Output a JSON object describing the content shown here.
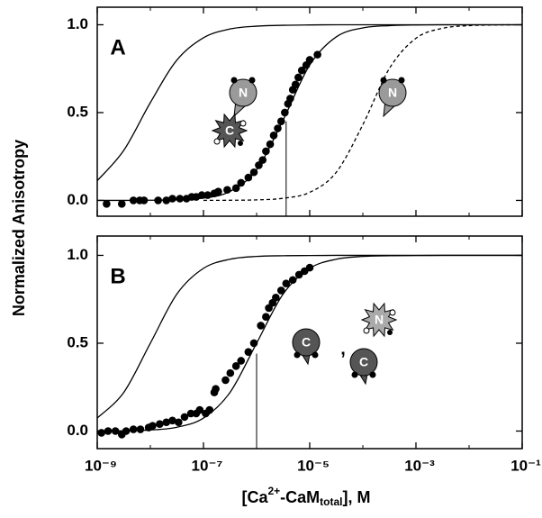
{
  "chart_data": [
    {
      "type": "line",
      "panel": "A",
      "xscale": "log",
      "xlim": [
        1e-09,
        0.1
      ],
      "xticks": [
        1e-09,
        1e-07,
        1e-05,
        0.001,
        0.1
      ],
      "xminorticks": [
        1e-08,
        1e-06,
        0.0001,
        0.01
      ],
      "ylim": [
        -0.09,
        1.1
      ],
      "yticks": [
        {
          "value": 0,
          "label": "0.0"
        },
        0.5,
        {
          "value": 1,
          "label": "1.0"
        }
      ],
      "ylabel": "Normalized Anisotropy",
      "annotations": [
        "N",
        "C",
        "N"
      ],
      "vline": {
        "x": 3.6e-06,
        "y": 0.45
      },
      "x": [
        1e-09,
        3.16e-09,
        1e-08,
        3.16e-08,
        1e-07,
        3.16e-07,
        1e-06,
        3.16e-06,
        1e-05,
        3.16e-05,
        0.0001,
        0.000316,
        0.001,
        0.00316,
        0.01,
        0.0316,
        0.1
      ],
      "series": [
        {
          "style": "solid",
          "color": "#000000",
          "values": [
            0.112,
            0.285,
            0.557,
            0.799,
            0.926,
            0.976,
            0.992,
            0.997,
            0.999,
            1,
            1,
            1,
            1,
            1,
            1,
            1,
            1
          ]
        },
        {
          "style": "solid",
          "color": "#000000",
          "values": [
            0,
            0.0002,
            0.0009,
            0.0034,
            0.013,
            0.051,
            0.175,
            0.458,
            0.771,
            0.931,
            0.982,
            0.995,
            0.999,
            1,
            1,
            1,
            1
          ]
        },
        {
          "style": "dashed",
          "color": "#000000",
          "values": [
            null,
            null,
            null,
            null,
            0.0002,
            0.0008,
            0.003,
            0.012,
            0.046,
            0.16,
            0.431,
            0.751,
            0.923,
            0.98,
            0.995,
            0.999,
            1
          ]
        },
        {
          "style": "markers",
          "color": "#000000",
          "x": [
            1.5e-09,
            2.9e-09,
            4.8e-09,
            6.3e-09,
            7.6e-09,
            1.4e-08,
            2e-08,
            2.6e-08,
            3.6e-08,
            4.8e-08,
            6e-08,
            7.3e-08,
            9.3e-08,
            1.2e-07,
            1.6e-07,
            1.9e-07,
            2.8e-07,
            4.1e-07,
            5.1e-07,
            7e-07,
            8.9e-07,
            1.1e-06,
            1.3e-06,
            1.5e-06,
            1.8e-06,
            2.1e-06,
            2.5e-06,
            2.9e-06,
            3.4e-06,
            3.9e-06,
            4.3e-06,
            4.8e-06,
            5.4e-06,
            6.1e-06,
            7.1e-06,
            8.6e-06,
            1e-05,
            1.4e-05
          ],
          "values": [
            -0.02,
            -0.02,
            0.0,
            0.0,
            0.0,
            0.0,
            0.0,
            0.01,
            0.01,
            0.01,
            0.02,
            0.02,
            0.03,
            0.03,
            0.04,
            0.05,
            0.06,
            0.07,
            0.1,
            0.13,
            0.16,
            0.2,
            0.23,
            0.28,
            0.32,
            0.37,
            0.41,
            0.45,
            0.5,
            0.55,
            0.58,
            0.63,
            0.66,
            0.7,
            0.74,
            0.77,
            0.8,
            0.83
          ]
        }
      ]
    },
    {
      "type": "line",
      "panel": "B",
      "xscale": "log",
      "xlim": [
        1e-09,
        0.1
      ],
      "xticks": [
        {
          "value": 1e-09,
          "label": "10⁻⁹"
        },
        {
          "value": 1e-07,
          "label": "10⁻⁷"
        },
        {
          "value": 1e-05,
          "label": "10⁻⁵"
        },
        {
          "value": 0.001,
          "label": "10⁻³"
        },
        {
          "value": 0.1,
          "label": "10⁻¹"
        }
      ],
      "xminorticks": [
        1e-08,
        1e-06,
        0.0001,
        0.01
      ],
      "ylim": [
        -0.1,
        1.11
      ],
      "yticks": [
        {
          "value": 0,
          "label": "0.0"
        },
        0.5,
        {
          "value": 1,
          "label": "1.0"
        }
      ],
      "xlabel": {
        "pre": "[Ca",
        "sup": "2+",
        "mid": "-CaM",
        "sub": "total",
        "post": "], M"
      },
      "annotations": [
        "C",
        ",",
        "N",
        "C"
      ],
      "vline": {
        "x": 1e-06,
        "y": 0.44
      },
      "x": [
        1e-09,
        3.16e-09,
        1e-08,
        3.16e-08,
        1e-07,
        3.16e-07,
        1e-06,
        3.16e-06,
        1e-05,
        3.16e-05,
        0.0001,
        0.000316,
        0.001,
        0.00316,
        0.01,
        0.0316,
        0.1
      ],
      "series": [
        {
          "style": "solid",
          "color": "#000000",
          "values": [
            0.074,
            0.22,
            0.5,
            0.78,
            0.926,
            0.978,
            0.994,
            0.998,
            0.999,
            1,
            1,
            1,
            1,
            1,
            1,
            1,
            1
          ]
        },
        {
          "style": "solid",
          "color": "#000000",
          "values": [
            0.0005,
            0.0018,
            0.006,
            0.022,
            0.074,
            0.22,
            0.5,
            0.78,
            0.926,
            0.978,
            0.994,
            0.998,
            0.999,
            1,
            1,
            1,
            1
          ]
        },
        {
          "style": "markers",
          "color": "#000000",
          "x": [
            1.2e-09,
            1.6e-09,
            2.2e-09,
            2.9e-09,
            3.5e-09,
            4.8e-09,
            6.5e-09,
            9.3e-09,
            1.1e-08,
            1.5e-08,
            2e-08,
            2.6e-08,
            3.4e-08,
            4.4e-08,
            5.8e-08,
            7.3e-08,
            8.5e-08,
            1.1e-07,
            1.3e-07,
            1.6e-07,
            1.7e-07,
            2.6e-07,
            3.2e-07,
            4.1e-07,
            5.1e-07,
            7e-07,
            8.9e-07,
            1.2e-06,
            1.5e-06,
            1.7e-06,
            2e-06,
            2.3e-06,
            2.9e-06,
            3.6e-06,
            4.8e-06,
            6.3e-06,
            8e-06,
            1e-05
          ],
          "values": [
            -0.01,
            0.0,
            0.0,
            -0.02,
            0.0,
            0.01,
            0.01,
            0.02,
            0.03,
            0.04,
            0.05,
            0.06,
            0.05,
            0.08,
            0.1,
            0.1,
            0.12,
            0.1,
            0.12,
            0.22,
            0.24,
            0.29,
            0.33,
            0.37,
            0.4,
            0.45,
            0.5,
            0.6,
            0.65,
            0.7,
            0.73,
            0.76,
            0.8,
            0.84,
            0.86,
            0.89,
            0.91,
            0.93
          ]
        }
      ]
    }
  ]
}
